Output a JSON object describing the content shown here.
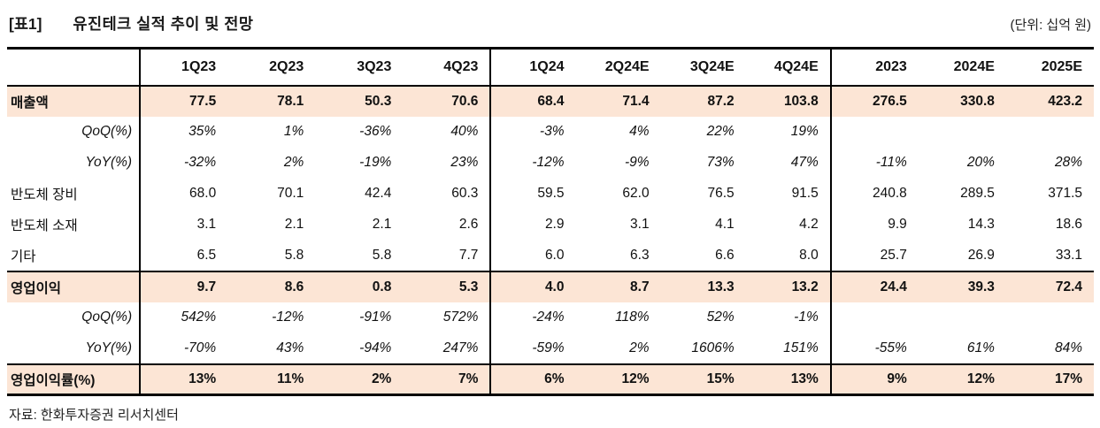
{
  "header": {
    "table_tag": "[표1]",
    "title": "유진테크 실적 추이 및 전망",
    "unit": "(단위: 십억 원)"
  },
  "table": {
    "columns": [
      "1Q23",
      "2Q23",
      "3Q23",
      "4Q23",
      "1Q24",
      "2Q24E",
      "3Q24E",
      "4Q24E",
      "2023",
      "2024E",
      "2025E"
    ],
    "group_start_indices": [
      0,
      4,
      8
    ],
    "rows": [
      {
        "label": "매출액",
        "type": "total",
        "rule_above": false,
        "values": [
          "77.5",
          "78.1",
          "50.3",
          "70.6",
          "68.4",
          "71.4",
          "87.2",
          "103.8",
          "276.5",
          "330.8",
          "423.2"
        ]
      },
      {
        "label": "QoQ(%)",
        "type": "ratio",
        "rule_above": false,
        "values": [
          "35%",
          "1%",
          "-36%",
          "40%",
          "-3%",
          "4%",
          "22%",
          "19%",
          "",
          "",
          ""
        ]
      },
      {
        "label": "YoY(%)",
        "type": "ratio",
        "rule_above": false,
        "values": [
          "-32%",
          "2%",
          "-19%",
          "23%",
          "-12%",
          "-9%",
          "73%",
          "47%",
          "-11%",
          "20%",
          "28%"
        ]
      },
      {
        "label": "반도체 장비",
        "type": "item",
        "rule_above": false,
        "values": [
          "68.0",
          "70.1",
          "42.4",
          "60.3",
          "59.5",
          "62.0",
          "76.5",
          "91.5",
          "240.8",
          "289.5",
          "371.5"
        ]
      },
      {
        "label": "반도체 소재",
        "type": "item",
        "rule_above": false,
        "values": [
          "3.1",
          "2.1",
          "2.1",
          "2.6",
          "2.9",
          "3.1",
          "4.1",
          "4.2",
          "9.9",
          "14.3",
          "18.6"
        ]
      },
      {
        "label": "기타",
        "type": "item",
        "rule_above": false,
        "values": [
          "6.5",
          "5.8",
          "5.8",
          "7.7",
          "6.0",
          "6.3",
          "6.6",
          "8.0",
          "25.7",
          "26.9",
          "33.1"
        ]
      },
      {
        "label": "영업이익",
        "type": "total",
        "rule_above": true,
        "values": [
          "9.7",
          "8.6",
          "0.8",
          "5.3",
          "4.0",
          "8.7",
          "13.3",
          "13.2",
          "24.4",
          "39.3",
          "72.4"
        ]
      },
      {
        "label": "QoQ(%)",
        "type": "ratio",
        "rule_above": false,
        "values": [
          "542%",
          "-12%",
          "-91%",
          "572%",
          "-24%",
          "118%",
          "52%",
          "-1%",
          "",
          "",
          ""
        ]
      },
      {
        "label": "YoY(%)",
        "type": "ratio",
        "rule_above": false,
        "values": [
          "-70%",
          "43%",
          "-94%",
          "247%",
          "-59%",
          "2%",
          "1606%",
          "151%",
          "-55%",
          "61%",
          "84%"
        ]
      },
      {
        "label": "영업이익률(%)",
        "type": "total",
        "rule_above": true,
        "values": [
          "13%",
          "11%",
          "2%",
          "7%",
          "6%",
          "12%",
          "15%",
          "13%",
          "9%",
          "12%",
          "17%"
        ]
      }
    ],
    "layout": {
      "label_col_width": 150,
      "q23_col_width": 99,
      "q24_col_width": 96,
      "annual_col_width": 99
    },
    "colors": {
      "highlight_bg": "#fce5d5",
      "border": "#000000",
      "text": "#111111"
    }
  },
  "footer": {
    "source": "자료: 한화투자증권 리서치센터"
  }
}
